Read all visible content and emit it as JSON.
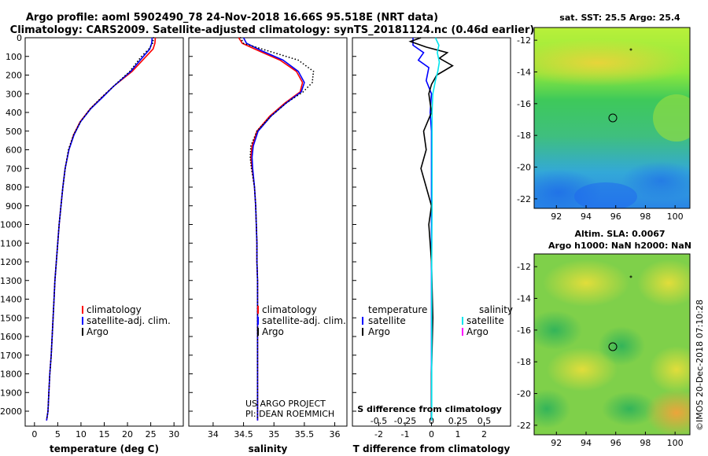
{
  "header": {
    "title_line1": "Argo profile: aoml 5902490_78 24-Nov-2018 16.66S 95.518E (NRT data)",
    "title_line2": "Climatology: CARS2009. Satellite-adjusted climatology: synTS_20181124.nc (0.46d earlier)"
  },
  "colors": {
    "climatology": "#ff0000",
    "satellite": "#0000ff",
    "argo": "#000000",
    "salinity_satellite": "#00e5ee",
    "salinity_argo": "#ff00ff"
  },
  "chart_data": [
    {
      "type": "line",
      "title": "",
      "xlabel": "temperature (deg C)",
      "ylabel": "",
      "xlim": [
        -2,
        32
      ],
      "ylim": [
        2080,
        0
      ],
      "x_ticks": [
        0,
        5,
        10,
        15,
        20,
        25,
        30
      ],
      "x_tick_labels": [
        "0",
        "5",
        "10",
        "15",
        "20",
        "25",
        "30"
      ],
      "y_ticks": [
        0,
        100,
        200,
        300,
        400,
        500,
        600,
        700,
        800,
        900,
        1000,
        1100,
        1200,
        1300,
        1400,
        1500,
        1600,
        1700,
        1800,
        1900,
        2000
      ],
      "y_tick_labels": [
        "0",
        "100",
        "200",
        "300",
        "400",
        "500",
        "600",
        "700",
        "800",
        "900",
        "1000",
        "1100",
        "1200",
        "1300",
        "1400",
        "1500",
        "1600",
        "1700",
        "1800",
        "1900",
        "2000"
      ],
      "legend": {
        "position": "bottom-center",
        "entries": [
          {
            "label": "climatology",
            "color": "#ff0000"
          },
          {
            "label": "satellite-adj. clim.",
            "color": "#0000ff"
          },
          {
            "label": "Argo",
            "color": "#000000"
          }
        ]
      },
      "series": [
        {
          "name": "climatology",
          "color": "#ff0000",
          "style": "line",
          "x": [
            26.0,
            25.9,
            25.5,
            24.0,
            21.0,
            17.0,
            14.5,
            12.0,
            9.8,
            8.4,
            7.4,
            6.6,
            6.1,
            5.7,
            5.3,
            5.0,
            4.7,
            4.4,
            4.2,
            4.0,
            3.8,
            3.6,
            3.3,
            3.1,
            2.9,
            2.6
          ],
          "y": [
            0,
            30,
            60,
            100,
            180,
            260,
            320,
            380,
            450,
            520,
            600,
            700,
            800,
            900,
            1000,
            1100,
            1200,
            1300,
            1400,
            1500,
            1600,
            1700,
            1800,
            1900,
            2000,
            2050
          ]
        },
        {
          "name": "satellite-adj. clim.",
          "color": "#0000ff",
          "style": "line",
          "x": [
            25.3,
            25.2,
            24.8,
            23.4,
            20.7,
            17.0,
            14.6,
            12.1,
            9.9,
            8.5,
            7.4,
            6.6,
            6.1,
            5.7,
            5.3,
            5.0,
            4.7,
            4.4,
            4.2,
            4.0,
            3.8,
            3.6,
            3.3,
            3.1,
            2.9,
            2.6
          ],
          "y": [
            0,
            30,
            60,
            100,
            180,
            260,
            320,
            380,
            450,
            520,
            600,
            700,
            800,
            900,
            1000,
            1100,
            1200,
            1300,
            1400,
            1500,
            1600,
            1700,
            1800,
            1900,
            2000,
            2050
          ]
        },
        {
          "name": "Argo",
          "color": "#000000",
          "style": "dots",
          "x": [
            25.6,
            25.4,
            24.6,
            23.0,
            20.5,
            17.0,
            14.4,
            12.0,
            9.9,
            8.4,
            7.3,
            6.6,
            6.1,
            5.7,
            5.3,
            5.0,
            4.7,
            4.4,
            4.2,
            4.0,
            3.8,
            3.6,
            3.3,
            3.1,
            2.9,
            2.6
          ],
          "y": [
            0,
            30,
            60,
            100,
            180,
            260,
            320,
            380,
            450,
            520,
            600,
            700,
            800,
            900,
            1000,
            1100,
            1200,
            1300,
            1400,
            1500,
            1600,
            1700,
            1800,
            1900,
            2000,
            2050
          ]
        }
      ]
    },
    {
      "type": "line",
      "title": "",
      "xlabel": "salinity",
      "ylabel": "",
      "xlim": [
        33.6,
        36.2
      ],
      "ylim": [
        2080,
        0
      ],
      "x_ticks": [
        34,
        34.5,
        35,
        35.5,
        36
      ],
      "x_tick_labels": [
        "34",
        "34.5",
        "35",
        "35.5",
        "36"
      ],
      "legend": {
        "position": "bottom-right",
        "entries": [
          {
            "label": "climatology",
            "color": "#ff0000"
          },
          {
            "label": "satellite-adj. clim.",
            "color": "#0000ff"
          },
          {
            "label": "Argo",
            "color": "#000000"
          }
        ]
      },
      "annotation_line1": "US ARGO PROJECT",
      "annotation_line2": "PI: DEAN ROEMMICH",
      "series": [
        {
          "name": "climatology",
          "color": "#ff0000",
          "style": "line",
          "x": [
            34.42,
            34.48,
            34.75,
            35.1,
            35.37,
            35.47,
            35.43,
            35.18,
            34.93,
            34.72,
            34.64,
            34.62,
            34.64,
            34.68,
            34.7,
            34.71,
            34.72,
            34.72,
            34.73,
            34.73,
            34.73,
            34.73,
            34.73,
            34.73,
            34.73,
            34.73,
            34.73
          ],
          "y": [
            0,
            30,
            70,
            120,
            180,
            240,
            290,
            350,
            420,
            500,
            580,
            640,
            700,
            800,
            900,
            1000,
            1100,
            1200,
            1300,
            1400,
            1500,
            1600,
            1700,
            1800,
            1900,
            2000,
            2050
          ]
        },
        {
          "name": "satellite-adj. clim.",
          "color": "#0000ff",
          "style": "line",
          "x": [
            34.5,
            34.55,
            34.8,
            35.15,
            35.4,
            35.5,
            35.45,
            35.2,
            34.95,
            34.74,
            34.66,
            34.64,
            34.65,
            34.68,
            34.7,
            34.71,
            34.72,
            34.72,
            34.73,
            34.73,
            34.73,
            34.73,
            34.73,
            34.73,
            34.73,
            34.73,
            34.73
          ],
          "y": [
            0,
            30,
            70,
            120,
            180,
            240,
            290,
            350,
            420,
            500,
            580,
            640,
            700,
            800,
            900,
            1000,
            1100,
            1200,
            1300,
            1400,
            1500,
            1600,
            1700,
            1800,
            1900,
            2000,
            2050
          ]
        },
        {
          "name": "Argo",
          "color": "#000000",
          "style": "dots",
          "x": [
            34.45,
            34.5,
            34.9,
            35.4,
            35.65,
            35.63,
            35.48,
            35.2,
            34.95,
            34.72,
            34.62,
            34.61,
            34.63,
            34.68,
            34.7,
            34.71,
            34.72,
            34.72,
            34.73,
            34.73,
            34.73,
            34.73,
            34.73,
            34.73,
            34.73,
            34.73,
            34.73
          ],
          "y": [
            0,
            30,
            70,
            120,
            180,
            240,
            290,
            350,
            420,
            500,
            580,
            640,
            700,
            800,
            900,
            1000,
            1100,
            1200,
            1300,
            1400,
            1500,
            1600,
            1700,
            1800,
            1900,
            2000,
            2050
          ]
        }
      ]
    },
    {
      "type": "line",
      "title": "",
      "xlabel": "T difference from climatology",
      "top_xlabel": "S difference from climatology",
      "ylabel": "",
      "xlim": [
        -3,
        3
      ],
      "ylim": [
        2080,
        0
      ],
      "x_ticks": [
        -2,
        -1,
        0,
        1,
        2
      ],
      "x_tick_labels": [
        "-2",
        "-1",
        "0",
        "1",
        "2"
      ],
      "top_ticks": [
        -0.5,
        -0.25,
        0,
        0.25,
        0.5
      ],
      "top_tick_labels": [
        "-0.5",
        "-0.25",
        "0",
        "0.25",
        "0.5"
      ],
      "legend": {
        "position": "bottom",
        "group_left_title": "temperature",
        "group_right_title": "salinity",
        "entries": [
          {
            "label": "satellite",
            "color": "#0000ff",
            "group": "temperature"
          },
          {
            "label": "Argo",
            "color": "#000000",
            "group": "temperature"
          },
          {
            "label": "satellite",
            "color": "#00e5ee",
            "group": "salinity"
          },
          {
            "label": "Argo",
            "color": "#ff00ff",
            "group": "salinity"
          }
        ]
      },
      "series": [
        {
          "name": "temperature satellite",
          "color": "#0000ff",
          "style": "line",
          "x": [
            -0.7,
            -0.7,
            -0.3,
            -0.5,
            -0.1,
            -0.2,
            0.0,
            -0.05,
            0.0,
            0.0,
            0.0,
            0.0,
            0.0,
            0.0,
            0.0,
            0.0,
            0.0
          ],
          "y": [
            0,
            40,
            80,
            120,
            160,
            230,
            300,
            400,
            500,
            600,
            700,
            900,
            1200,
            1500,
            1800,
            2000,
            2050
          ]
        },
        {
          "name": "temperature Argo",
          "color": "#000000",
          "style": "line",
          "x": [
            -0.4,
            -0.8,
            -0.2,
            0.6,
            0.3,
            0.8,
            0.2,
            0.0,
            -0.1,
            0.0,
            -0.3,
            -0.2,
            -0.4,
            -0.2,
            0.0,
            -0.1,
            0.0,
            0.05,
            0.0,
            0.0,
            0.0
          ],
          "y": [
            0,
            20,
            50,
            80,
            110,
            150,
            200,
            250,
            300,
            400,
            500,
            600,
            700,
            800,
            900,
            1000,
            1200,
            1500,
            1800,
            2000,
            2050
          ]
        },
        {
          "name": "salinity satellite",
          "color": "#00e5ee",
          "style": "line",
          "x": [
            0.15,
            0.28,
            0.22,
            0.3,
            0.24,
            0.15,
            0.05,
            0.02,
            0.02,
            0.02,
            0.02,
            0.02,
            0.01,
            0.01,
            0.01,
            0.01
          ],
          "y": [
            0,
            40,
            80,
            130,
            180,
            230,
            300,
            400,
            500,
            600,
            700,
            900,
            1200,
            1500,
            1800,
            2050
          ]
        }
      ]
    }
  ],
  "sst_map": {
    "title": "sat. SST: 25.5 Argo: 25.4",
    "x_tick_labels": [
      "92",
      "94",
      "96",
      "98",
      "100"
    ],
    "y_tick_labels": [
      "-12",
      "-14",
      "-16",
      "-18",
      "-20",
      "-22"
    ]
  },
  "sla_map": {
    "title_line1": "Altim. SLA: 0.0067",
    "title_line2": "Argo h1000: NaN h2000: NaN",
    "x_tick_labels": [
      "92",
      "94",
      "96",
      "98",
      "100"
    ],
    "y_tick_labels": [
      "-12",
      "-14",
      "-16",
      "-18",
      "-20",
      "-22"
    ]
  },
  "watermark": "©IMOS 20-Dec-2018 07:10:28"
}
